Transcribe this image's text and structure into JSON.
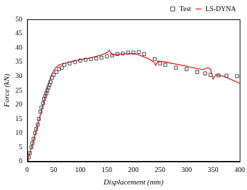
{
  "chart_data": {
    "type": "scatter",
    "x_label": "Displacement (mm)",
    "y_label": "Force (kN)",
    "xlim": [
      0,
      400
    ],
    "xticks": [
      0,
      50,
      100,
      150,
      200,
      250,
      300,
      350,
      400
    ],
    "ylim": [
      0,
      50
    ],
    "yticks": [
      0,
      5,
      10,
      15,
      20,
      25,
      30,
      35,
      40,
      45,
      50
    ],
    "grid": false,
    "legend": "upper right",
    "series": [
      {
        "name": "Test",
        "type": "scatter",
        "marker": "square",
        "color": "#444444",
        "x": [
          0,
          3,
          5,
          8,
          10,
          12,
          15,
          17,
          20,
          22,
          25,
          27,
          30,
          32,
          34,
          36,
          38,
          40,
          42,
          44,
          47,
          50,
          55,
          60,
          65,
          70,
          80,
          90,
          100,
          110,
          120,
          130,
          140,
          150,
          160,
          170,
          180,
          190,
          200,
          210,
          220,
          240,
          250,
          260,
          280,
          300,
          320,
          335,
          345,
          360,
          375,
          395
        ],
        "values": [
          0,
          1.5,
          3,
          5,
          6.5,
          8,
          10,
          11.5,
          13,
          15,
          17.5,
          19,
          20.5,
          22,
          23,
          24,
          25,
          26,
          27,
          28,
          29.5,
          30.5,
          31.5,
          32.5,
          33,
          34,
          34.5,
          35,
          35.5,
          35.8,
          36,
          36.2,
          36.5,
          37,
          37.3,
          37.8,
          38,
          38.3,
          38.3,
          38.5,
          37.8,
          36,
          34.5,
          34,
          33,
          32.5,
          31.5,
          31,
          30.5,
          30.3,
          30.2,
          30
        ]
      },
      {
        "name": "LS-DYNA",
        "type": "line",
        "line_style": "solid",
        "color": "#e0201c",
        "x": [
          0,
          10,
          20,
          30,
          40,
          45,
          50,
          55,
          60,
          80,
          100,
          120,
          140,
          150,
          155,
          160,
          180,
          200,
          210,
          230,
          238,
          242,
          246,
          260,
          300,
          330,
          340,
          345,
          350,
          355,
          370,
          400
        ],
        "values": [
          0,
          6,
          13,
          20,
          27,
          30,
          32,
          33.2,
          34,
          35,
          35.8,
          36.5,
          37.5,
          38.3,
          39,
          37.5,
          37.8,
          38,
          37.5,
          36,
          35,
          33.8,
          35.3,
          35,
          33.5,
          32.3,
          33,
          32.5,
          29,
          30.5,
          30,
          27.5
        ]
      }
    ]
  }
}
